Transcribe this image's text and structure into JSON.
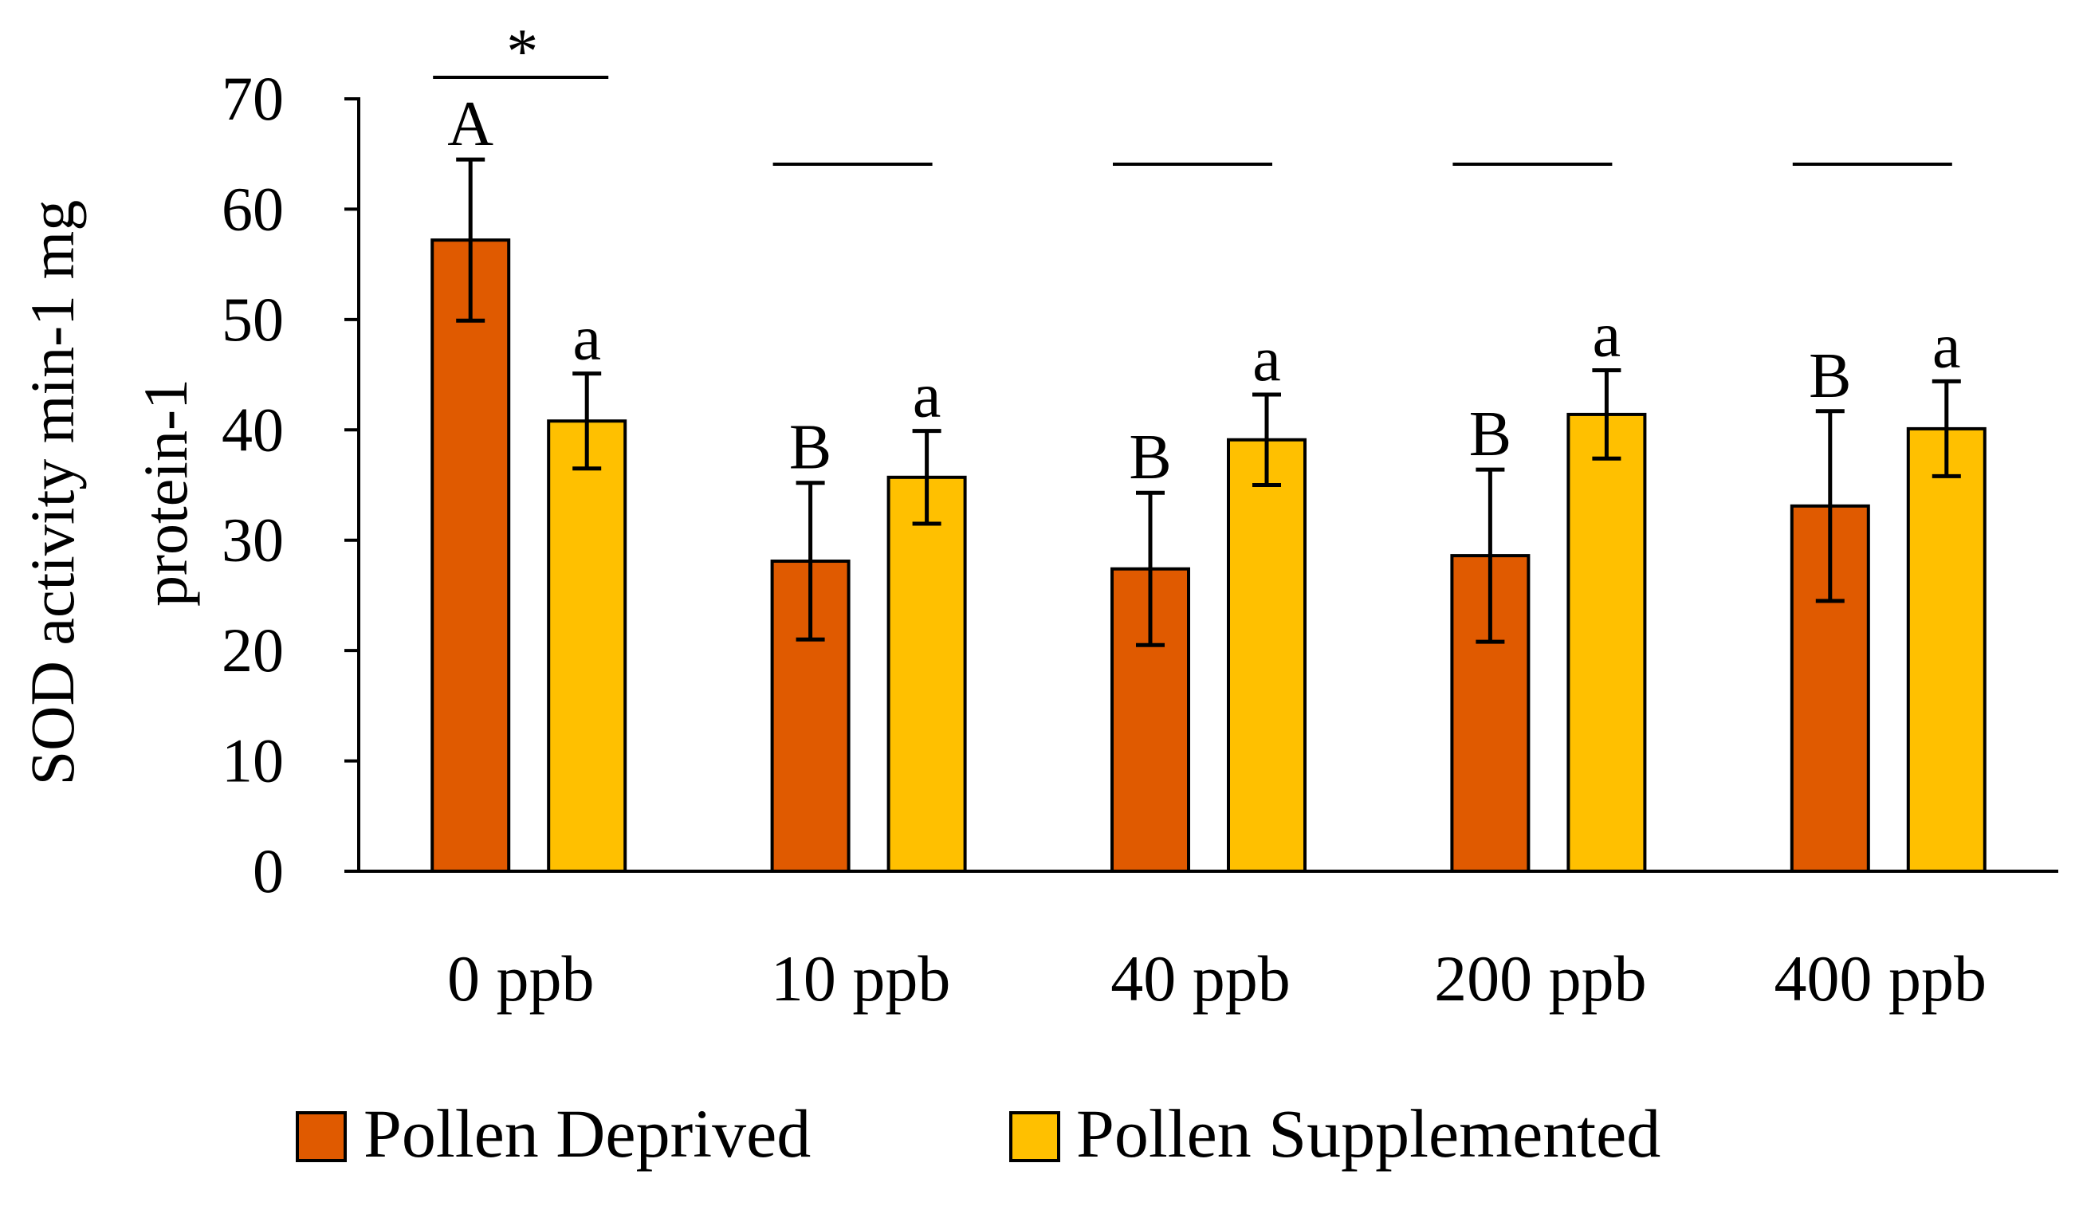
{
  "chart_data": {
    "type": "bar",
    "ylabel": [
      "SOD activity min-1 mg",
      "protein-1"
    ],
    "xlabel": "",
    "ylim": [
      0,
      70
    ],
    "yticks": [
      "0",
      "10",
      "20",
      "30",
      "40",
      "50",
      "60",
      "70"
    ],
    "categories": [
      "0 ppb",
      "10 ppb",
      "40 ppb",
      "200 ppb",
      "400 ppb"
    ],
    "series": [
      {
        "name": "Pollen Deprived",
        "color": "#E05A00",
        "values": [
          57.2,
          28.1,
          27.4,
          28.6,
          33.1
        ],
        "errors": [
          7.3,
          7.1,
          6.9,
          7.8,
          8.6
        ],
        "letters": [
          "A",
          "B",
          "B",
          "B",
          "B"
        ]
      },
      {
        "name": "Pollen Supplemented",
        "color": "#FFC000",
        "values": [
          40.8,
          35.7,
          39.1,
          41.4,
          40.1
        ],
        "errors": [
          4.3,
          4.2,
          4.1,
          4.0,
          4.3
        ],
        "letters": [
          "a",
          "a",
          "a",
          "a",
          "a"
        ]
      }
    ],
    "significance": [
      "*",
      "",
      "",
      "",
      ""
    ],
    "legend": {
      "position": "bottom",
      "labels": [
        "Pollen Deprived",
        "Pollen Supplemented"
      ]
    },
    "grid": false
  }
}
